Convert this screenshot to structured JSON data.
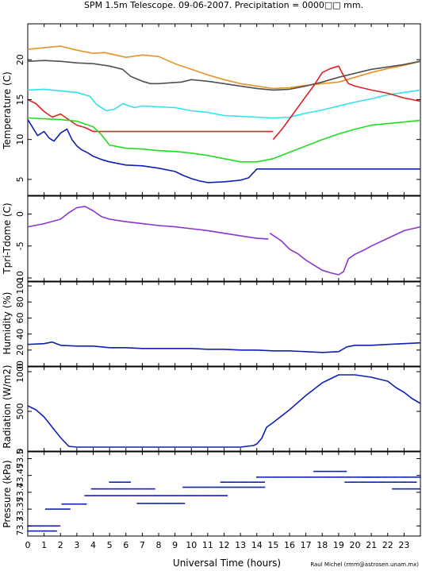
{
  "title": "SPM 1.5m Telescope. 09-06-2007. Precipitation = 0000□□ mm.",
  "xlabel": "Universal Time (hours)",
  "credit": "Raul Michel (rmm@astrosen.unam.mx)",
  "x_ticks": [
    "0",
    "1",
    "2",
    "3",
    "4",
    "5",
    "6",
    "7",
    "8",
    "9",
    "10",
    "11",
    "12",
    "13",
    "14",
    "15",
    "16",
    "17",
    "18",
    "19",
    "20",
    "21",
    "22",
    "23"
  ],
  "colors": {
    "orange": "#e8922a",
    "dark_gray": "#505050",
    "gray": "#808080",
    "cyan": "#33e0ee",
    "red": "#dd2222",
    "green": "#22dd22",
    "blue": "#1020b0",
    "purple": "#8a35d0"
  },
  "chart_data": [
    {
      "type": "line",
      "panel": "temperature",
      "ylabel": "Temperature (C)",
      "xlim": [
        0,
        24
      ],
      "ylim": [
        3,
        24.5
      ],
      "y_ticks": [
        5,
        10,
        15,
        20
      ],
      "series": [
        {
          "color": "orange",
          "x": [
            0,
            1,
            2,
            3,
            4,
            4.7,
            6,
            7,
            8,
            9,
            10,
            11,
            12,
            13,
            14,
            15,
            16,
            17,
            18,
            19,
            20,
            21,
            22,
            23,
            24
          ],
          "y": [
            21.3,
            21.5,
            21.7,
            21.2,
            20.8,
            20.9,
            20.3,
            20.6,
            20.4,
            19.5,
            18.8,
            18.1,
            17.5,
            17.0,
            16.7,
            16.4,
            16.5,
            16.8,
            17.0,
            17.2,
            17.8,
            18.4,
            18.9,
            19.3,
            19.8
          ]
        },
        {
          "color": "dark_gray",
          "x": [
            0,
            1,
            2,
            3,
            4,
            5,
            5.8,
            6.3,
            7,
            7.5,
            8,
            9.4,
            10,
            11,
            12,
            13,
            14,
            15,
            16,
            17,
            18,
            19,
            20,
            21,
            22,
            23,
            24
          ],
          "y": [
            19.8,
            19.9,
            19.8,
            19.6,
            19.5,
            19.2,
            18.8,
            17.9,
            17.3,
            17.0,
            17.0,
            17.2,
            17.5,
            17.3,
            17.0,
            16.7,
            16.4,
            16.2,
            16.3,
            16.7,
            17.2,
            17.8,
            18.3,
            18.8,
            19.1,
            19.4,
            19.8
          ]
        },
        {
          "color": "cyan",
          "x": [
            0,
            1,
            2,
            3,
            3.8,
            4.2,
            4.8,
            5.3,
            5.8,
            6.5,
            7,
            8,
            9,
            10,
            11,
            12,
            13,
            14,
            15,
            16,
            17,
            18,
            19,
            20,
            21,
            22,
            23,
            24
          ],
          "y": [
            16.2,
            16.3,
            16.1,
            15.9,
            15.4,
            14.4,
            13.6,
            13.8,
            14.5,
            14.0,
            14.2,
            14.1,
            14.0,
            13.6,
            13.4,
            13.0,
            12.9,
            12.8,
            12.7,
            12.8,
            13.3,
            13.7,
            14.2,
            14.7,
            15.1,
            15.6,
            15.9,
            16.2
          ]
        },
        {
          "color": "red",
          "x": [
            0,
            0.5,
            1,
            1.5,
            2,
            2.5,
            3,
            3.5,
            4,
            5,
            6,
            7,
            8,
            9,
            10,
            11,
            12,
            13,
            14,
            15
          ],
          "y": [
            15.0,
            14.5,
            13.5,
            12.8,
            13.2,
            12.5,
            11.8,
            11.5,
            11.0,
            11.0,
            11.0,
            11.0,
            11.0,
            11.0,
            11.0,
            11.0,
            11.0,
            11.0,
            11.0,
            11.0
          ]
        },
        {
          "color": "red",
          "x": [
            15,
            15.5,
            16,
            16.5,
            17,
            17.5,
            18,
            18.5,
            19,
            19.3,
            19.6,
            20,
            21,
            22,
            23,
            24
          ],
          "y": [
            10.0,
            11.2,
            12.6,
            14.0,
            15.4,
            16.8,
            18.4,
            18.9,
            19.2,
            18.0,
            17.0,
            16.7,
            16.2,
            15.8,
            15.2,
            14.8
          ]
        },
        {
          "color": "green",
          "x": [
            0,
            1,
            2,
            3,
            4,
            4.5,
            5,
            6,
            7,
            8,
            9,
            10,
            11,
            12,
            13,
            14,
            15,
            16,
            17,
            18,
            19,
            20,
            21,
            22,
            23,
            24
          ],
          "y": [
            12.7,
            12.6,
            12.5,
            12.3,
            11.6,
            10.6,
            9.3,
            8.9,
            8.8,
            8.6,
            8.5,
            8.3,
            8.0,
            7.6,
            7.2,
            7.2,
            7.6,
            8.4,
            9.2,
            10.0,
            10.7,
            11.3,
            11.8,
            12.0,
            12.2,
            12.4
          ]
        },
        {
          "color": "blue",
          "x": [
            0,
            0.3,
            0.6,
            1,
            1.3,
            1.6,
            2,
            2.4,
            2.7,
            3,
            3.3,
            3.7,
            4,
            4.5,
            5,
            6,
            7,
            8,
            9,
            9.5,
            10,
            10.5,
            11,
            12,
            13,
            13.5,
            14,
            15,
            16,
            17,
            18,
            19,
            20,
            21,
            22,
            23,
            24
          ],
          "y": [
            12.5,
            11.5,
            10.5,
            11.0,
            10.2,
            9.8,
            10.8,
            11.3,
            10.0,
            9.2,
            8.7,
            8.3,
            7.9,
            7.5,
            7.2,
            6.8,
            6.7,
            6.4,
            6.0,
            5.5,
            5.1,
            4.8,
            4.6,
            4.7,
            4.9,
            5.2,
            6.3,
            6.3,
            6.3,
            6.3,
            6.3,
            6.3,
            6.3,
            6.3,
            6.3,
            6.3,
            6.3
          ]
        }
      ]
    },
    {
      "type": "line",
      "panel": "tpri_tdome",
      "ylabel": "Tpri-Tdome (C)",
      "xlim": [
        0,
        24
      ],
      "ylim": [
        -10.5,
        2.8
      ],
      "y_ticks": [
        -10,
        -5,
        0
      ],
      "series": [
        {
          "color": "purple",
          "x": [
            0,
            1,
            2,
            2.5,
            3,
            3.5,
            4,
            4.5,
            5,
            6,
            7,
            8,
            9,
            10,
            11,
            12,
            13,
            14,
            14.7
          ],
          "y": [
            -2.0,
            -1.5,
            -0.8,
            0.2,
            1.0,
            1.2,
            0.5,
            -0.4,
            -0.8,
            -1.2,
            -1.5,
            -1.8,
            -2.0,
            -2.3,
            -2.6,
            -3.0,
            -3.4,
            -3.8,
            -3.9
          ]
        },
        {
          "color": "purple",
          "x": [
            14.8,
            15.5,
            16,
            16.5,
            17,
            17.5,
            18,
            18.5,
            19,
            19.3,
            19.6,
            20,
            20.5,
            21,
            22,
            23,
            24
          ],
          "y": [
            -3.0,
            -4.2,
            -5.5,
            -6.2,
            -7.2,
            -8.0,
            -8.8,
            -9.2,
            -9.5,
            -9.0,
            -7.0,
            -6.3,
            -5.7,
            -5.0,
            -3.8,
            -2.6,
            -2.0
          ]
        }
      ]
    },
    {
      "type": "line",
      "panel": "humidity",
      "ylabel": "Humidity (%)",
      "xlim": [
        0,
        24
      ],
      "ylim": [
        0,
        105
      ],
      "y_ticks": [
        0,
        20,
        40,
        60,
        80,
        100
      ],
      "series": [
        {
          "color": "blue",
          "x": [
            0,
            1,
            1.5,
            2,
            3,
            4,
            5,
            6,
            7,
            8,
            9,
            10,
            11,
            12,
            13,
            14,
            15,
            16,
            17,
            18,
            19,
            19.5,
            20,
            21,
            22,
            23,
            24
          ],
          "y": [
            27,
            28,
            30,
            26,
            25,
            25,
            23,
            23,
            22,
            22,
            22,
            22,
            21,
            21,
            20,
            20,
            19,
            19,
            18,
            17,
            18,
            24,
            26,
            26,
            27,
            28,
            29
          ]
        }
      ]
    },
    {
      "type": "line",
      "panel": "radiation",
      "ylabel": "Radiation (W/m2)",
      "xlim": [
        0,
        24
      ],
      "ylim": [
        0,
        1060
      ],
      "y_ticks": [
        0,
        500,
        1000
      ],
      "series": [
        {
          "color": "blue",
          "x": [
            0,
            0.5,
            1,
            1.5,
            2,
            2.5,
            3,
            5,
            7,
            9,
            11,
            13,
            13.8,
            14,
            14.3,
            14.6,
            15,
            16,
            17,
            18,
            19,
            20,
            21,
            22,
            22.5,
            23,
            23.5,
            24
          ],
          "y": [
            570,
            520,
            430,
            300,
            170,
            60,
            50,
            50,
            50,
            50,
            50,
            50,
            70,
            90,
            160,
            300,
            360,
            520,
            700,
            860,
            960,
            960,
            930,
            880,
            800,
            740,
            660,
            600
          ]
        }
      ]
    },
    {
      "type": "scatter",
      "panel": "pressure",
      "ylabel": "Pressure (kPa)",
      "xlim": [
        0,
        24
      ],
      "ylim": [
        73.27,
        73.52
      ],
      "y_ticks": [
        "73.3",
        "73.35",
        "73.4",
        "73.45",
        "73.5"
      ],
      "series": [
        {
          "color": "blue",
          "x": [
            0,
            2
          ],
          "y": [
            73.3,
            73.3
          ]
        },
        {
          "color": "blue",
          "x": [
            0,
            1.8
          ],
          "y": [
            73.285,
            73.285
          ]
        },
        {
          "color": "blue",
          "x": [
            1.1,
            2.6
          ],
          "y": [
            73.35,
            73.35
          ]
        },
        {
          "color": "blue",
          "x": [
            2.1,
            3.6
          ],
          "y": [
            73.365,
            73.365
          ]
        },
        {
          "color": "blue",
          "x": [
            3.5,
            12.2
          ],
          "y": [
            73.39,
            73.39
          ]
        },
        {
          "color": "blue",
          "x": [
            6.7,
            9.6
          ],
          "y": [
            73.367,
            73.367
          ]
        },
        {
          "color": "blue",
          "x": [
            3.9,
            7.8
          ],
          "y": [
            73.41,
            73.41
          ]
        },
        {
          "color": "blue",
          "x": [
            5.0,
            6.3
          ],
          "y": [
            73.43,
            73.43
          ]
        },
        {
          "color": "blue",
          "x": [
            9.5,
            14.5
          ],
          "y": [
            73.415,
            73.415
          ]
        },
        {
          "color": "blue",
          "x": [
            11.8,
            14.5
          ],
          "y": [
            73.43,
            73.43
          ]
        },
        {
          "color": "blue",
          "x": [
            14.0,
            21.5
          ],
          "y": [
            73.445,
            73.445
          ]
        },
        {
          "color": "blue",
          "x": [
            17.5,
            19.5
          ],
          "y": [
            73.462,
            73.462
          ]
        },
        {
          "color": "blue",
          "x": [
            19.4,
            23.8
          ],
          "y": [
            73.43,
            73.43
          ]
        },
        {
          "color": "blue",
          "x": [
            20.5,
            24
          ],
          "y": [
            73.445,
            73.445
          ]
        },
        {
          "color": "blue",
          "x": [
            22.3,
            24
          ],
          "y": [
            73.41,
            73.41
          ]
        }
      ]
    }
  ]
}
